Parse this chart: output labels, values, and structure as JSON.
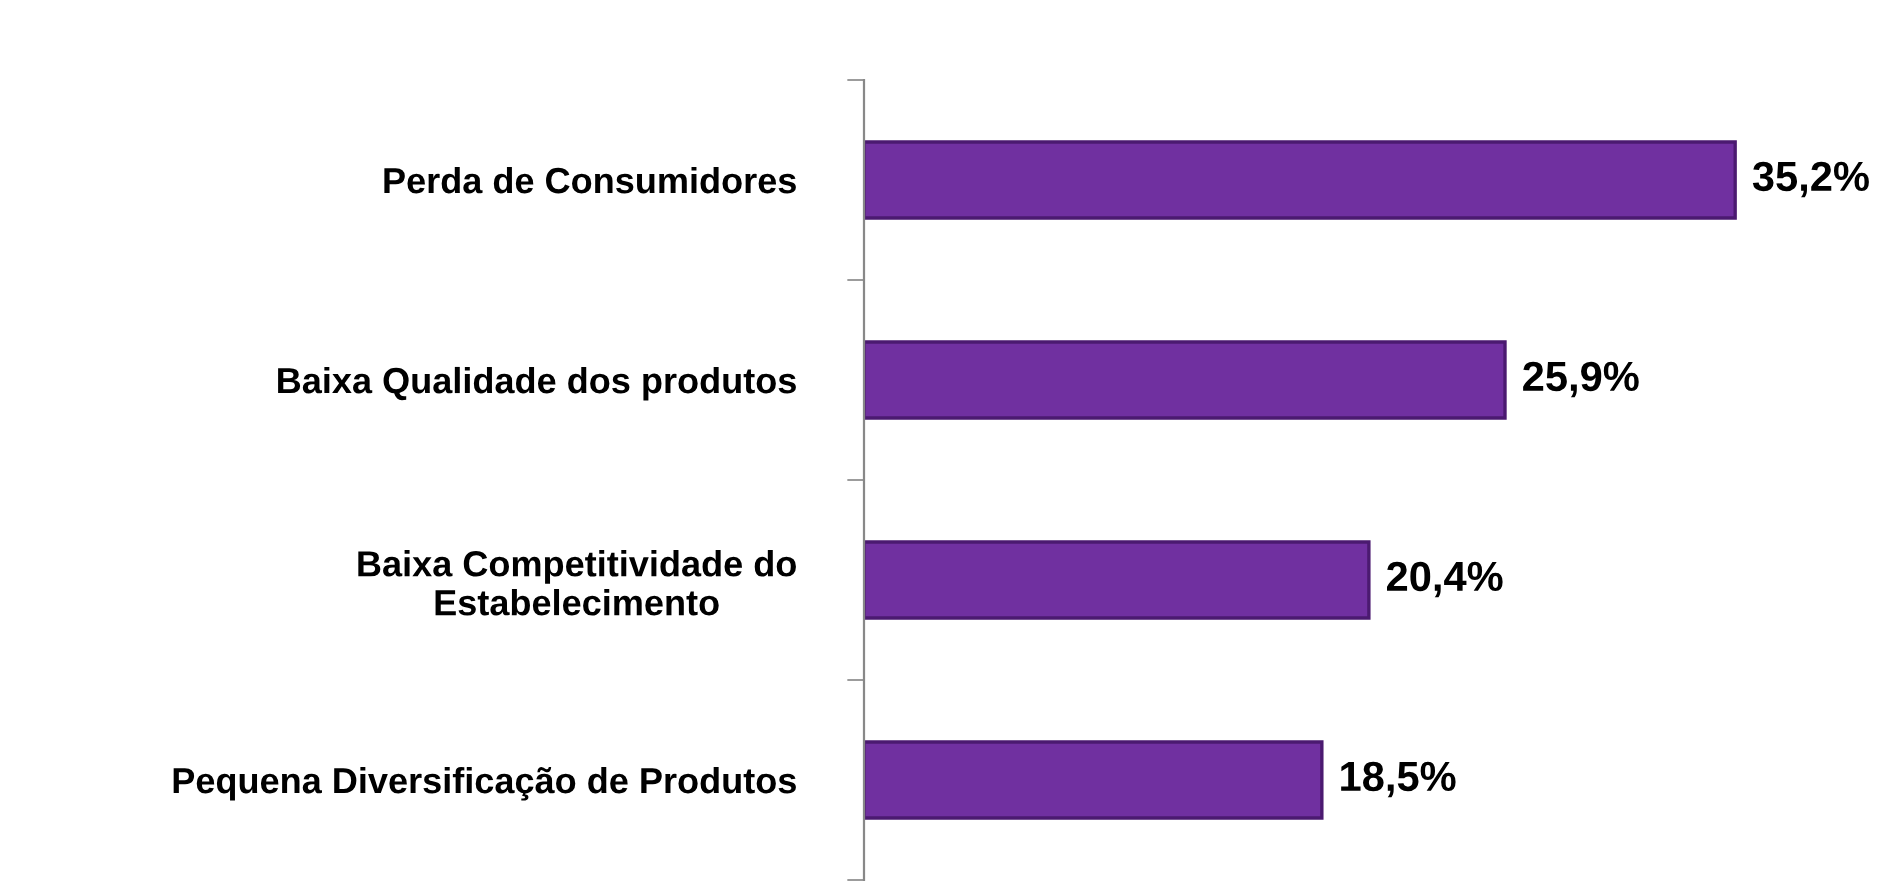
{
  "chart_data": {
    "type": "bar",
    "orientation": "horizontal",
    "categories": [
      "Perda de Consumidores",
      "Baixa Qualidade dos produtos",
      "Baixa Competitividade do\nEstabelecimento",
      "Pequena Diversificação de Produtos"
    ],
    "values": [
      35.2,
      25.9,
      20.4,
      18.5
    ],
    "value_labels": [
      "35,2%",
      "25,9%",
      "20,4%",
      "18,5%"
    ],
    "color": "#7030a0",
    "grid": false,
    "legend": false
  }
}
